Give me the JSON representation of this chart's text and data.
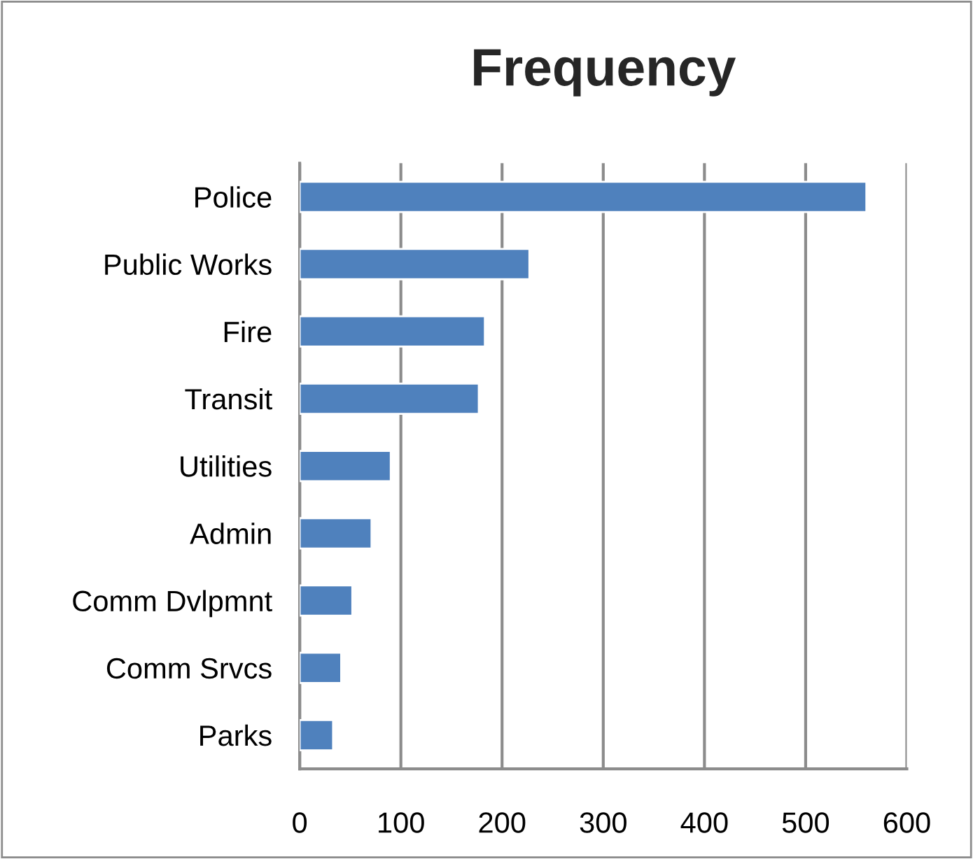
{
  "chart_data": {
    "type": "bar",
    "orientation": "horizontal",
    "title": "Frequency",
    "categories": [
      "Police",
      "Public Works",
      "Fire",
      "Transit",
      "Utilities",
      "Admin",
      "Comm Dvlpmnt",
      "Comm Srvcs",
      "Parks"
    ],
    "values": [
      560,
      227,
      183,
      177,
      90,
      71,
      52,
      41,
      33
    ],
    "color": "#4f81bd",
    "xlim": [
      0,
      600
    ],
    "xticks": [
      0,
      100,
      200,
      300,
      400,
      500,
      600
    ],
    "grid": "x"
  }
}
